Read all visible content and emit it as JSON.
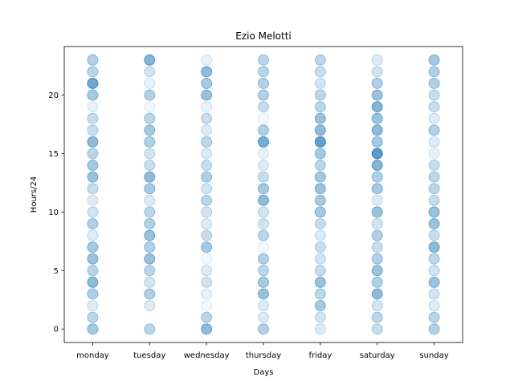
{
  "chart_data": {
    "type": "scatter",
    "title": "Ezio Melotti",
    "xlabel": "Days",
    "ylabel": "Hours/24",
    "categories": [
      "monday",
      "tuesday",
      "wednesday",
      "thursday",
      "friday",
      "saturday",
      "sunday"
    ],
    "yticks": [
      0,
      5,
      10,
      15,
      20
    ],
    "ylim": [
      -1.15,
      24.15
    ],
    "grid": false,
    "legend": "none",
    "marker_color": "#1f77b4",
    "series": [
      {
        "values": [
          [
            0,
            0.4
          ],
          [
            1,
            0.3
          ],
          [
            2,
            0.15
          ],
          [
            3,
            0.35
          ],
          [
            4,
            0.5
          ],
          [
            5,
            0.3
          ],
          [
            6,
            0.45
          ],
          [
            7,
            0.4
          ],
          [
            8,
            0.15
          ],
          [
            9,
            0.35
          ],
          [
            10,
            0.2
          ],
          [
            11,
            0.15
          ],
          [
            12,
            0.25
          ],
          [
            13,
            0.45
          ],
          [
            14,
            0.4
          ],
          [
            15,
            0.3
          ],
          [
            16,
            0.5
          ],
          [
            17,
            0.25
          ],
          [
            18,
            0.25
          ],
          [
            19,
            0.1
          ],
          [
            20,
            0.4
          ],
          [
            21,
            0.65
          ],
          [
            22,
            0.3
          ],
          [
            23,
            0.35
          ]
        ]
      },
      {
        "values": [
          [
            0,
            0.3
          ],
          [
            2,
            0.15
          ],
          [
            3,
            0.35
          ],
          [
            4,
            0.2
          ],
          [
            5,
            0.3
          ],
          [
            6,
            0.45
          ],
          [
            7,
            0.35
          ],
          [
            8,
            0.45
          ],
          [
            9,
            0.35
          ],
          [
            10,
            0.3
          ],
          [
            11,
            0.15
          ],
          [
            12,
            0.4
          ],
          [
            13,
            0.5
          ],
          [
            14,
            0.25
          ],
          [
            15,
            0.2
          ],
          [
            16,
            0.35
          ],
          [
            17,
            0.4
          ],
          [
            18,
            0.3
          ],
          [
            19,
            0.05
          ],
          [
            20,
            0.35
          ],
          [
            21,
            0.1
          ],
          [
            22,
            0.2
          ],
          [
            23,
            0.55
          ]
        ]
      },
      {
        "values": [
          [
            0,
            0.5
          ],
          [
            1,
            0.3
          ],
          [
            2,
            0.05
          ],
          [
            3,
            0.1
          ],
          [
            4,
            0.2
          ],
          [
            5,
            0.15
          ],
          [
            6,
            0.05
          ],
          [
            7,
            0.4
          ],
          [
            8,
            0.25
          ],
          [
            9,
            0.15
          ],
          [
            10,
            0.2
          ],
          [
            11,
            0.3
          ],
          [
            12,
            0.2
          ],
          [
            13,
            0.35
          ],
          [
            14,
            0.25
          ],
          [
            15,
            0.15
          ],
          [
            16,
            0.3
          ],
          [
            17,
            0.15
          ],
          [
            18,
            0.25
          ],
          [
            19,
            0.1
          ],
          [
            20,
            0.45
          ],
          [
            21,
            0.4
          ],
          [
            22,
            0.5
          ],
          [
            23,
            0.1
          ]
        ]
      },
      {
        "values": [
          [
            0,
            0.35
          ],
          [
            1,
            0.15
          ],
          [
            2,
            0.15
          ],
          [
            3,
            0.45
          ],
          [
            4,
            0.4
          ],
          [
            5,
            0.3
          ],
          [
            6,
            0.35
          ],
          [
            7,
            0.05
          ],
          [
            8,
            0.3
          ],
          [
            9,
            0.2
          ],
          [
            10,
            0.2
          ],
          [
            11,
            0.5
          ],
          [
            12,
            0.4
          ],
          [
            13,
            0.25
          ],
          [
            14,
            0.15
          ],
          [
            15,
            0.1
          ],
          [
            16,
            0.6
          ],
          [
            17,
            0.35
          ],
          [
            18,
            0.05
          ],
          [
            19,
            0.25
          ],
          [
            20,
            0.35
          ],
          [
            21,
            0.35
          ],
          [
            22,
            0.3
          ],
          [
            23,
            0.3
          ]
        ]
      },
      {
        "values": [
          [
            0,
            0.15
          ],
          [
            1,
            0.2
          ],
          [
            2,
            0.4
          ],
          [
            3,
            0.3
          ],
          [
            4,
            0.45
          ],
          [
            5,
            0.25
          ],
          [
            6,
            0.2
          ],
          [
            7,
            0.25
          ],
          [
            8,
            0.15
          ],
          [
            9,
            0.25
          ],
          [
            10,
            0.4
          ],
          [
            11,
            0.4
          ],
          [
            12,
            0.45
          ],
          [
            13,
            0.4
          ],
          [
            14,
            0.3
          ],
          [
            15,
            0.4
          ],
          [
            16,
            0.7
          ],
          [
            17,
            0.5
          ],
          [
            18,
            0.45
          ],
          [
            19,
            0.3
          ],
          [
            20,
            0.3
          ],
          [
            21,
            0.2
          ],
          [
            22,
            0.25
          ],
          [
            23,
            0.3
          ]
        ]
      },
      {
        "values": [
          [
            0,
            0.25
          ],
          [
            1,
            0.3
          ],
          [
            2,
            0.2
          ],
          [
            3,
            0.5
          ],
          [
            4,
            0.35
          ],
          [
            5,
            0.45
          ],
          [
            6,
            0.35
          ],
          [
            7,
            0.25
          ],
          [
            8,
            0.35
          ],
          [
            9,
            0.2
          ],
          [
            10,
            0.45
          ],
          [
            11,
            0.15
          ],
          [
            12,
            0.4
          ],
          [
            13,
            0.35
          ],
          [
            14,
            0.55
          ],
          [
            15,
            0.75
          ],
          [
            16,
            0.4
          ],
          [
            17,
            0.5
          ],
          [
            18,
            0.45
          ],
          [
            19,
            0.55
          ],
          [
            20,
            0.45
          ],
          [
            21,
            0.35
          ],
          [
            22,
            0.2
          ],
          [
            23,
            0.15
          ]
        ]
      },
      {
        "values": [
          [
            0,
            0.35
          ],
          [
            1,
            0.3
          ],
          [
            2,
            0.15
          ],
          [
            3,
            0.2
          ],
          [
            4,
            0.45
          ],
          [
            5,
            0.2
          ],
          [
            6,
            0.3
          ],
          [
            7,
            0.5
          ],
          [
            8,
            0.25
          ],
          [
            9,
            0.45
          ],
          [
            10,
            0.45
          ],
          [
            11,
            0.25
          ],
          [
            12,
            0.3
          ],
          [
            13,
            0.3
          ],
          [
            14,
            0.25
          ],
          [
            15,
            0.1
          ],
          [
            16,
            0.15
          ],
          [
            17,
            0.35
          ],
          [
            18,
            0.15
          ],
          [
            19,
            0.25
          ],
          [
            20,
            0.25
          ],
          [
            21,
            0.35
          ],
          [
            22,
            0.35
          ],
          [
            23,
            0.4
          ]
        ]
      }
    ]
  }
}
